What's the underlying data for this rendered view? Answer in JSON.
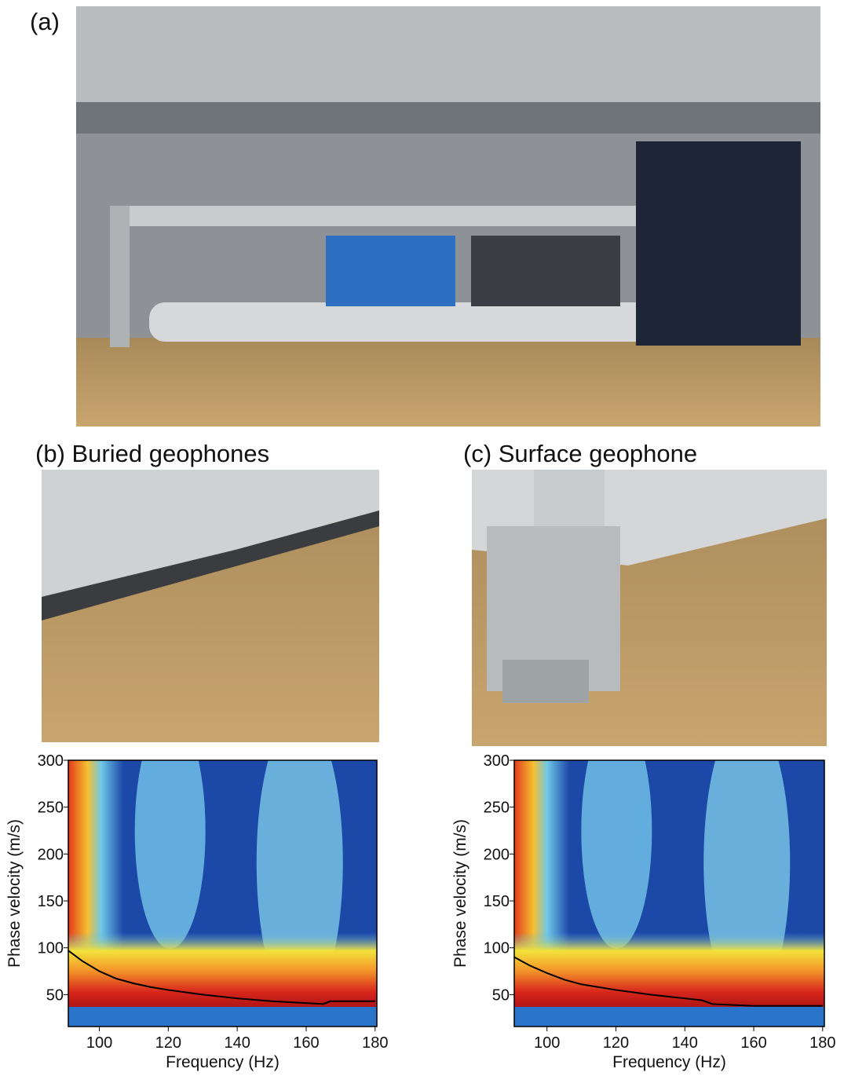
{
  "panels": {
    "a": "(a)",
    "b": "(b) Buried geophones",
    "c": "(c) Surface geophone"
  },
  "chart_data": [
    {
      "type": "line",
      "x_label": "Frequency (Hz)",
      "y_label": "Phase velocity (m/s)",
      "x": [
        91,
        95,
        100,
        105,
        110,
        115,
        120,
        130,
        140,
        150,
        160,
        165,
        167,
        170,
        180
      ],
      "values": [
        97,
        86,
        75,
        67,
        62,
        58,
        55,
        50,
        46,
        43,
        41,
        40,
        43,
        43,
        43
      ],
      "color": "#000000",
      "xlim": [
        91,
        180.5
      ],
      "ylim": [
        16,
        300
      ],
      "xticks": [
        100,
        120,
        140,
        160,
        180
      ],
      "yticks": [
        50,
        100,
        150,
        200,
        250,
        300
      ]
    },
    {
      "type": "line",
      "x_label": "Frequency (Hz)",
      "y_label": "Phase velocity (m/s)",
      "x": [
        90.5,
        95,
        100,
        105,
        110,
        115,
        120,
        130,
        140,
        145,
        148,
        160,
        170,
        180
      ],
      "values": [
        90,
        81,
        73,
        66,
        61,
        58,
        55,
        50,
        46,
        44,
        40,
        38,
        38,
        38
      ],
      "color": "#000000",
      "xlim": [
        90.5,
        180.5
      ],
      "ylim": [
        16,
        300
      ],
      "xticks": [
        100,
        120,
        140,
        160,
        180
      ],
      "yticks": [
        50,
        100,
        150,
        200,
        250,
        300
      ]
    }
  ]
}
